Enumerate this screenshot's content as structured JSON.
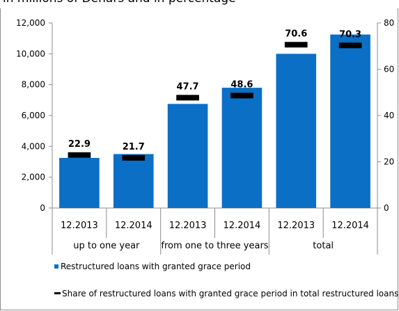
{
  "subtitle": "in millions of Denars and in percentage",
  "colors": {
    "bar": "#0b6fc6",
    "marker": "#000000",
    "axis": "#8c8c8c",
    "grid": "#8c8c8c"
  },
  "chart_data": {
    "type": "bar",
    "categories": [
      "12.2013",
      "12.2014",
      "12.2013",
      "12.2014",
      "12.2013",
      "12.2014"
    ],
    "groups": [
      {
        "label": "up to one year",
        "span": 2
      },
      {
        "label": "from one to three years",
        "span": 2
      },
      {
        "label": "total",
        "span": 2
      }
    ],
    "series": [
      {
        "name": "Restructured loans with granted grace period",
        "type": "bar",
        "axis": "left",
        "values": [
          3250,
          3500,
          6750,
          7800,
          10000,
          11250
        ]
      },
      {
        "name": "Share of restructured loans with granted grace period in total restructured loans",
        "type": "marker",
        "axis": "right",
        "values": [
          22.9,
          21.7,
          47.7,
          48.6,
          70.6,
          70.3
        ]
      }
    ],
    "data_labels": [
      "22.9",
      "21.7",
      "47.7",
      "48.6",
      "70.6",
      "70.3"
    ],
    "ylim": [
      0,
      12000
    ],
    "y_ticks": [
      "0",
      "2,000",
      "4,000",
      "6,000",
      "8,000",
      "10,000",
      "12,000"
    ],
    "y2lim": [
      0,
      80
    ],
    "y2_ticks": [
      "0",
      "20",
      "40",
      "60",
      "80"
    ],
    "legend_position": "bottom",
    "grid": false
  }
}
